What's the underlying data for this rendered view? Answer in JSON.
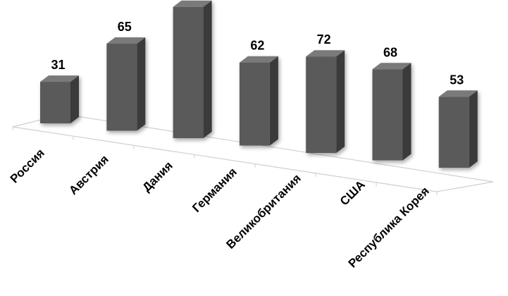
{
  "chart_data": {
    "type": "bar",
    "style": "3d-perspective",
    "categories": [
      "Россия",
      "Австрия",
      "Дания",
      "Германия",
      "Великобритания",
      "США",
      "Республика Корея"
    ],
    "values": [
      31,
      65,
      98,
      62,
      72,
      68,
      53
    ],
    "data_labels": [
      "31",
      "65",
      "",
      "62",
      "72",
      "68",
      "53"
    ],
    "title": "",
    "xlabel": "",
    "ylabel": "",
    "ylim": [
      0,
      100
    ],
    "grid": false,
    "legend": "none",
    "colors": {
      "bar_front": "#5a5a5a",
      "bar_side": "#3a3a3a",
      "bar_top": "#7a7a7a",
      "floor_edge": "#cfcfcf"
    }
  }
}
